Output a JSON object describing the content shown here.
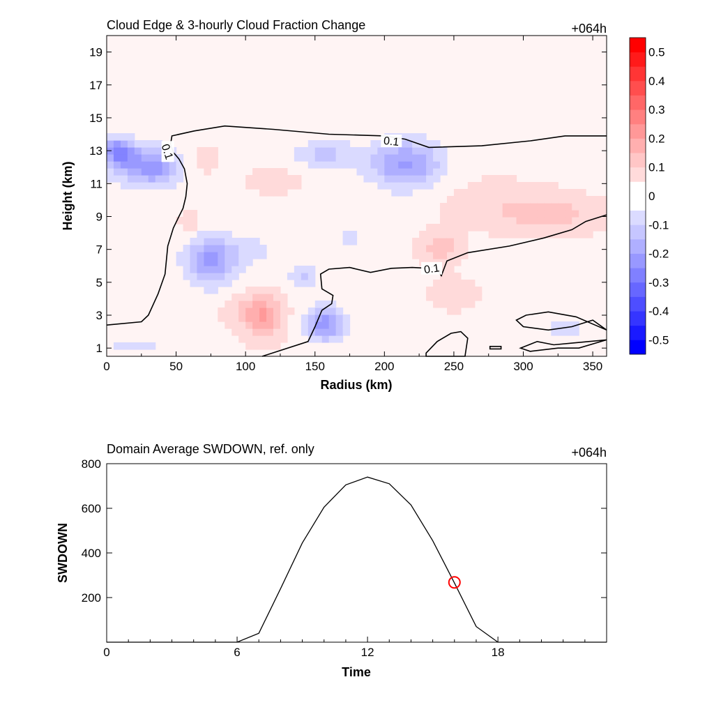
{
  "chart_data": [
    {
      "type": "heatmap",
      "title": "Cloud Edge & 3-hourly Cloud Fraction Change",
      "time_label": "+064h",
      "xlabel": "Radius (km)",
      "ylabel": "Height (km)",
      "xlim": [
        0,
        360
      ],
      "ylim": [
        0.5,
        20
      ],
      "x_ticks": [
        0,
        50,
        100,
        150,
        200,
        250,
        300,
        350
      ],
      "y_ticks": [
        1,
        3,
        5,
        7,
        9,
        11,
        13,
        15,
        17,
        19
      ],
      "colorbar": {
        "levels": [
          -0.55,
          -0.5,
          -0.45,
          -0.4,
          -0.35,
          -0.3,
          -0.25,
          -0.2,
          -0.15,
          -0.1,
          -0.05,
          0,
          0.05,
          0.1,
          0.15,
          0.2,
          0.25,
          0.3,
          0.35,
          0.4,
          0.45,
          0.5,
          0.55
        ],
        "tick_values": [
          -0.5,
          -0.4,
          -0.3,
          -0.2,
          -0.1,
          0,
          0.1,
          0.2,
          0.3,
          0.4,
          0.5
        ],
        "tick_labels": [
          "-0.5",
          "-0.4",
          "-0.3",
          "-0.2",
          "-0.1",
          "0",
          "0.1",
          "0.2",
          "0.3",
          "0.4",
          "0.5"
        ],
        "negative_color": "#0000ff",
        "positive_color": "#ff0000",
        "neutral_color": "#ffffff"
      },
      "anomalies": [
        {
          "r": 8,
          "z": 13.0,
          "sr": 10,
          "sz": 0.8,
          "value": -0.22
        },
        {
          "r": 25,
          "z": 12.2,
          "sr": 22,
          "sz": 1.2,
          "value": -0.18
        },
        {
          "r": 40,
          "z": 11.8,
          "sr": 14,
          "sz": 0.9,
          "value": -0.08
        },
        {
          "r": 75,
          "z": 6.3,
          "sr": 18,
          "sz": 1.4,
          "value": -0.2
        },
        {
          "r": 105,
          "z": 7.0,
          "sr": 20,
          "sz": 1.0,
          "value": -0.05
        },
        {
          "r": 113,
          "z": 2.9,
          "sr": 13,
          "sz": 1.3,
          "value": 0.17
        },
        {
          "r": 95,
          "z": 3.3,
          "sr": 12,
          "sz": 1.0,
          "value": 0.05
        },
        {
          "r": 157,
          "z": 2.5,
          "sr": 13,
          "sz": 1.0,
          "value": -0.22
        },
        {
          "r": 142,
          "z": 5.5,
          "sr": 10,
          "sz": 0.7,
          "value": -0.1
        },
        {
          "r": 158,
          "z": 12.8,
          "sr": 22,
          "sz": 0.8,
          "value": -0.1
        },
        {
          "r": 215,
          "z": 12.2,
          "sr": 25,
          "sz": 1.4,
          "value": -0.2
        },
        {
          "r": 120,
          "z": 11.2,
          "sr": 18,
          "sz": 0.8,
          "value": 0.04
        },
        {
          "r": 240,
          "z": 7.1,
          "sr": 14,
          "sz": 0.9,
          "value": 0.1
        },
        {
          "r": 320,
          "z": 9.1,
          "sr": 35,
          "sz": 1.1,
          "value": 0.08
        },
        {
          "r": 280,
          "z": 9.8,
          "sr": 40,
          "sz": 1.5,
          "value": 0.04
        },
        {
          "r": 175,
          "z": 7.6,
          "sr": 20,
          "sz": 1.3,
          "value": -0.04
        },
        {
          "r": 330,
          "z": 2.2,
          "sr": 25,
          "sz": 0.9,
          "value": -0.05
        },
        {
          "r": 20,
          "z": 1.2,
          "sr": 25,
          "sz": 0.6,
          "value": -0.05
        },
        {
          "r": 60,
          "z": 8.6,
          "sr": 8,
          "sz": 0.7,
          "value": 0.04
        },
        {
          "r": 250,
          "z": 4.3,
          "sr": 20,
          "sz": 1.0,
          "value": 0.04
        },
        {
          "r": 70,
          "z": 12.5,
          "sr": 8,
          "sz": 0.8,
          "value": 0.05
        }
      ],
      "contours": [
        {
          "label": "0.1",
          "label_at": [
            205,
            13.6
          ],
          "label_angle": 6,
          "points": [
            [
              0,
              2.4
            ],
            [
              25,
              2.6
            ],
            [
              30,
              3.0
            ],
            [
              37,
              4.3
            ],
            [
              42,
              5.5
            ],
            [
              44,
              7.2
            ],
            [
              48,
              8.3
            ],
            [
              52,
              9.0
            ],
            [
              55,
              9.5
            ],
            [
              57,
              10.2
            ],
            [
              58,
              11.0
            ],
            [
              56,
              11.9
            ],
            [
              52,
              12.5
            ],
            [
              48,
              12.9
            ],
            [
              46,
              13.4
            ],
            [
              47,
              13.9
            ],
            [
              63,
              14.2
            ],
            [
              85,
              14.5
            ],
            [
              120,
              14.3
            ],
            [
              160,
              14.0
            ],
            [
              200,
              13.9
            ],
            [
              215,
              13.7
            ],
            [
              232,
              13.2
            ],
            [
              270,
              13.3
            ],
            [
              305,
              13.6
            ],
            [
              330,
              13.9
            ],
            [
              360,
              13.9
            ]
          ]
        },
        {
          "label": "0.1",
          "label_at": [
            234,
            5.85
          ],
          "label_angle": -8,
          "points": [
            [
              112,
              0.5
            ],
            [
              145,
              1.4
            ],
            [
              150,
              2.3
            ],
            [
              155,
              3.3
            ],
            [
              162,
              3.7
            ],
            [
              163,
              4.2
            ],
            [
              155,
              4.6
            ],
            [
              154,
              5.5
            ],
            [
              160,
              5.8
            ],
            [
              175,
              5.9
            ],
            [
              190,
              5.6
            ],
            [
              205,
              5.85
            ],
            [
              220,
              5.9
            ],
            [
              232,
              5.85
            ],
            [
              236,
              6.0
            ],
            [
              241,
              5.4
            ],
            [
              245,
              6.3
            ],
            [
              260,
              6.8
            ],
            [
              290,
              7.2
            ],
            [
              315,
              7.7
            ],
            [
              335,
              8.2
            ],
            [
              345,
              8.7
            ],
            [
              360,
              9.1
            ]
          ]
        },
        {
          "label": "",
          "closed": true,
          "points": [
            [
              230,
              0.5
            ],
            [
              258,
              0.5
            ],
            [
              260,
              1.6
            ],
            [
              255,
              2.0
            ],
            [
              248,
              1.9
            ],
            [
              238,
              1.4
            ],
            [
              230,
              0.7
            ]
          ]
        },
        {
          "label": "",
          "closed": true,
          "points": [
            [
              276,
              0.95
            ],
            [
              284,
              0.95
            ],
            [
              284,
              1.1
            ],
            [
              276,
              1.1
            ]
          ]
        },
        {
          "label": "",
          "closed": true,
          "points": [
            [
              302,
              3.0
            ],
            [
              318,
              3.2
            ],
            [
              338,
              2.9
            ],
            [
              360,
              2.1
            ],
            [
              350,
              2.7
            ],
            [
              335,
              2.3
            ],
            [
              318,
              2.1
            ],
            [
              300,
              2.3
            ],
            [
              295,
              2.7
            ]
          ]
        },
        {
          "label": "",
          "closed": true,
          "points": [
            [
              298,
              1.0
            ],
            [
              310,
              1.4
            ],
            [
              322,
              1.2
            ],
            [
              335,
              1.3
            ],
            [
              360,
              1.5
            ],
            [
              340,
              1.0
            ],
            [
              325,
              1.0
            ],
            [
              305,
              0.8
            ]
          ]
        }
      ]
    },
    {
      "type": "line",
      "title": "Domain Average SWDOWN, ref. only",
      "time_label": "+064h",
      "xlabel": "Time",
      "ylabel": "SWDOWN",
      "xlim": [
        0,
        23
      ],
      "ylim": [
        0,
        800
      ],
      "x_ticks": [
        0,
        6,
        12,
        18
      ],
      "y_ticks": [
        200,
        400,
        600,
        800
      ],
      "x": [
        0,
        1,
        2,
        3,
        4,
        5,
        6,
        7,
        8,
        9,
        10,
        11,
        12,
        13,
        14,
        15,
        16,
        17,
        18,
        19,
        20,
        21,
        22,
        23
      ],
      "values": [
        0,
        0,
        0,
        0,
        0,
        0,
        0,
        40,
        240,
        445,
        605,
        705,
        740,
        710,
        615,
        455,
        265,
        70,
        0,
        0,
        0,
        0,
        0,
        0
      ],
      "marker": {
        "x": 16,
        "y": 268,
        "color": "#ff0000"
      },
      "line_color": "#000000"
    }
  ]
}
